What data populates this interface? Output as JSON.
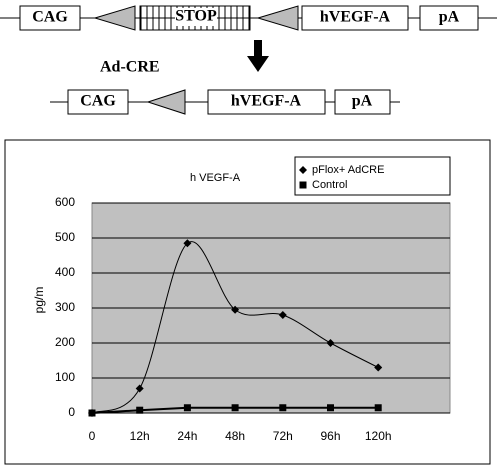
{
  "construct": {
    "before": [
      "CAG",
      "STOP",
      "hVEGF-A",
      "pA"
    ],
    "recombinase": "Ad-CRE",
    "after": [
      "CAG",
      "hVEGF-A",
      "pA"
    ]
  },
  "chart_data": {
    "type": "line",
    "title": "h VEGF-A",
    "y_label": "pg/m",
    "categories": [
      "0",
      "12h",
      "24h",
      "48h",
      "72h",
      "96h",
      "120h"
    ],
    "series": [
      {
        "name": "pFlox+ AdCRE",
        "color": "#000000",
        "marker": "diamond",
        "values": [
          0,
          70,
          485,
          295,
          280,
          200,
          130
        ]
      },
      {
        "name": "Control",
        "color": "#000000",
        "marker": "square",
        "values": [
          0,
          8,
          15,
          15,
          15,
          15,
          15
        ]
      }
    ],
    "ylim": [
      0,
      600
    ],
    "yticks": [
      0,
      100,
      200,
      300,
      400,
      500,
      600
    ],
    "grid": true,
    "legend": "top-right"
  }
}
